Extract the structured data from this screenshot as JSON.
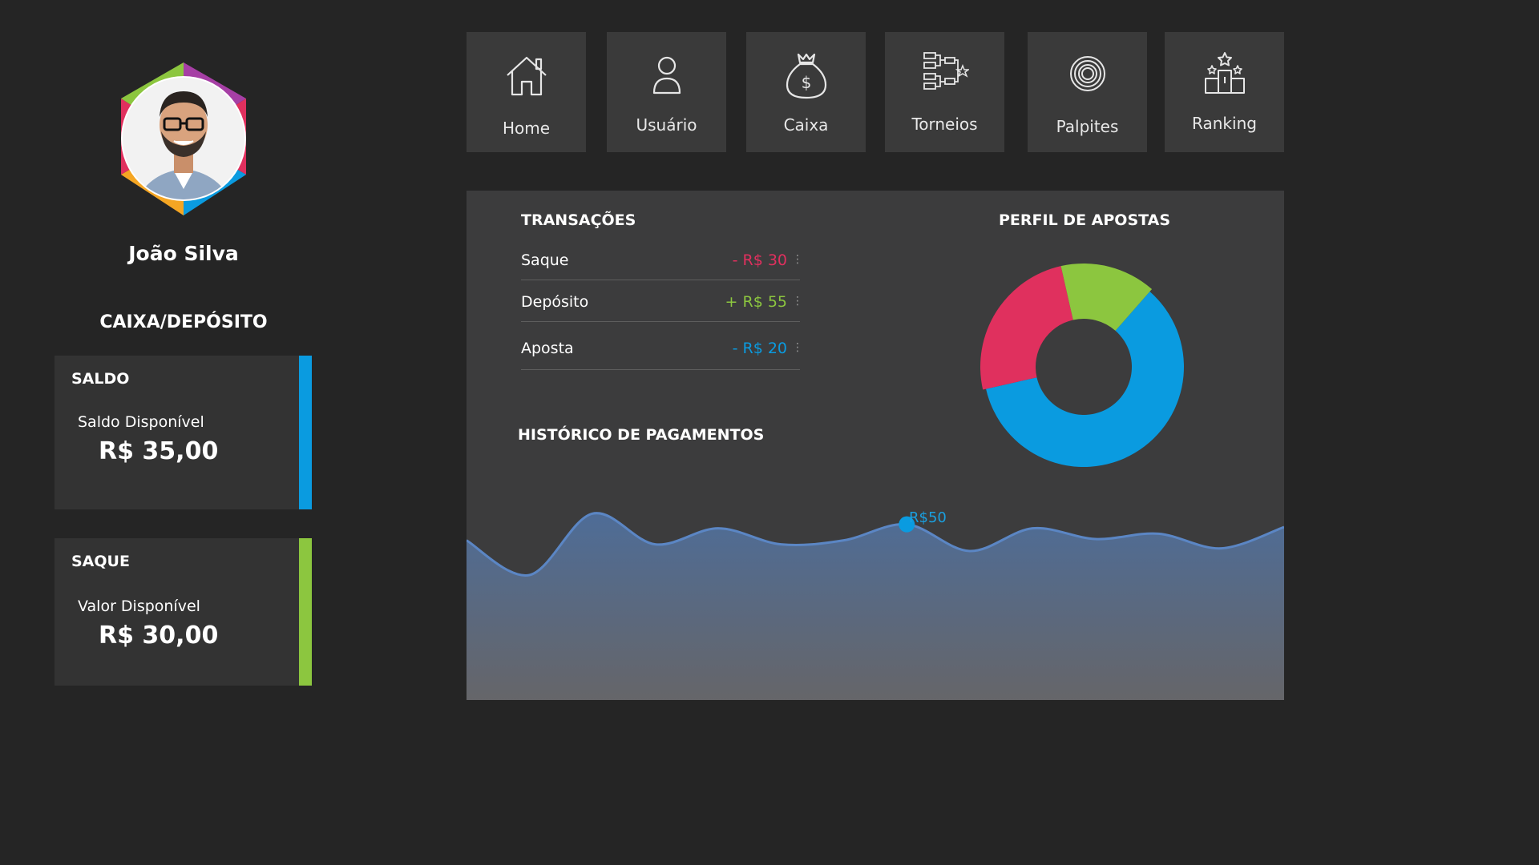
{
  "user": {
    "name": "João Silva"
  },
  "wallet": {
    "section_title": "CAIXA/DEPÓSITO",
    "saldo": {
      "title": "SALDO",
      "label": "Saldo Disponível",
      "value": "R$ 35,00",
      "accent": "#0a9be0"
    },
    "saque": {
      "title": "SAQUE",
      "label": "Valor Disponível",
      "value": "R$ 30,00",
      "accent": "#8cc63f"
    }
  },
  "nav": [
    {
      "label": "Home",
      "icon": "home-icon"
    },
    {
      "label": "Usuário",
      "icon": "user-icon"
    },
    {
      "label": "Caixa",
      "icon": "money-bag-icon"
    },
    {
      "label": "Torneios",
      "icon": "bracket-icon"
    },
    {
      "label": "Palpites",
      "icon": "chip-icon"
    },
    {
      "label": "Ranking",
      "icon": "podium-icon"
    }
  ],
  "transactions": {
    "title": "TRANSAÇÕES",
    "items": [
      {
        "label": "Saque",
        "amount": "- R$ 30",
        "color": "#e0305e"
      },
      {
        "label": "Depósito",
        "amount": "+ R$ 55",
        "color": "#8cc63f"
      },
      {
        "label": "Aposta",
        "amount": "- R$ 20",
        "color": "#0a9be0"
      }
    ]
  },
  "profile": {
    "title": "PERFIL DE APOSTAS"
  },
  "history": {
    "title": "HISTÓRICO DE PAGAMENTOS",
    "highlight_label": "R$50"
  },
  "chart_data": [
    {
      "type": "pie",
      "title": "PERFIL DE APOSTAS",
      "slices": [
        {
          "value": 60,
          "color": "#0a9be0"
        },
        {
          "value": 25,
          "color": "#e0305e"
        },
        {
          "value": 15,
          "color": "#8cc63f"
        }
      ]
    },
    {
      "type": "area",
      "title": "HISTÓRICO DE PAGAMENTOS",
      "values": [
        38,
        12,
        58,
        35,
        47,
        35,
        38,
        50,
        30,
        47,
        39,
        43,
        32,
        48
      ],
      "highlight": {
        "index": 7,
        "label": "R$50"
      },
      "color": "#5a7bb0"
    }
  ]
}
